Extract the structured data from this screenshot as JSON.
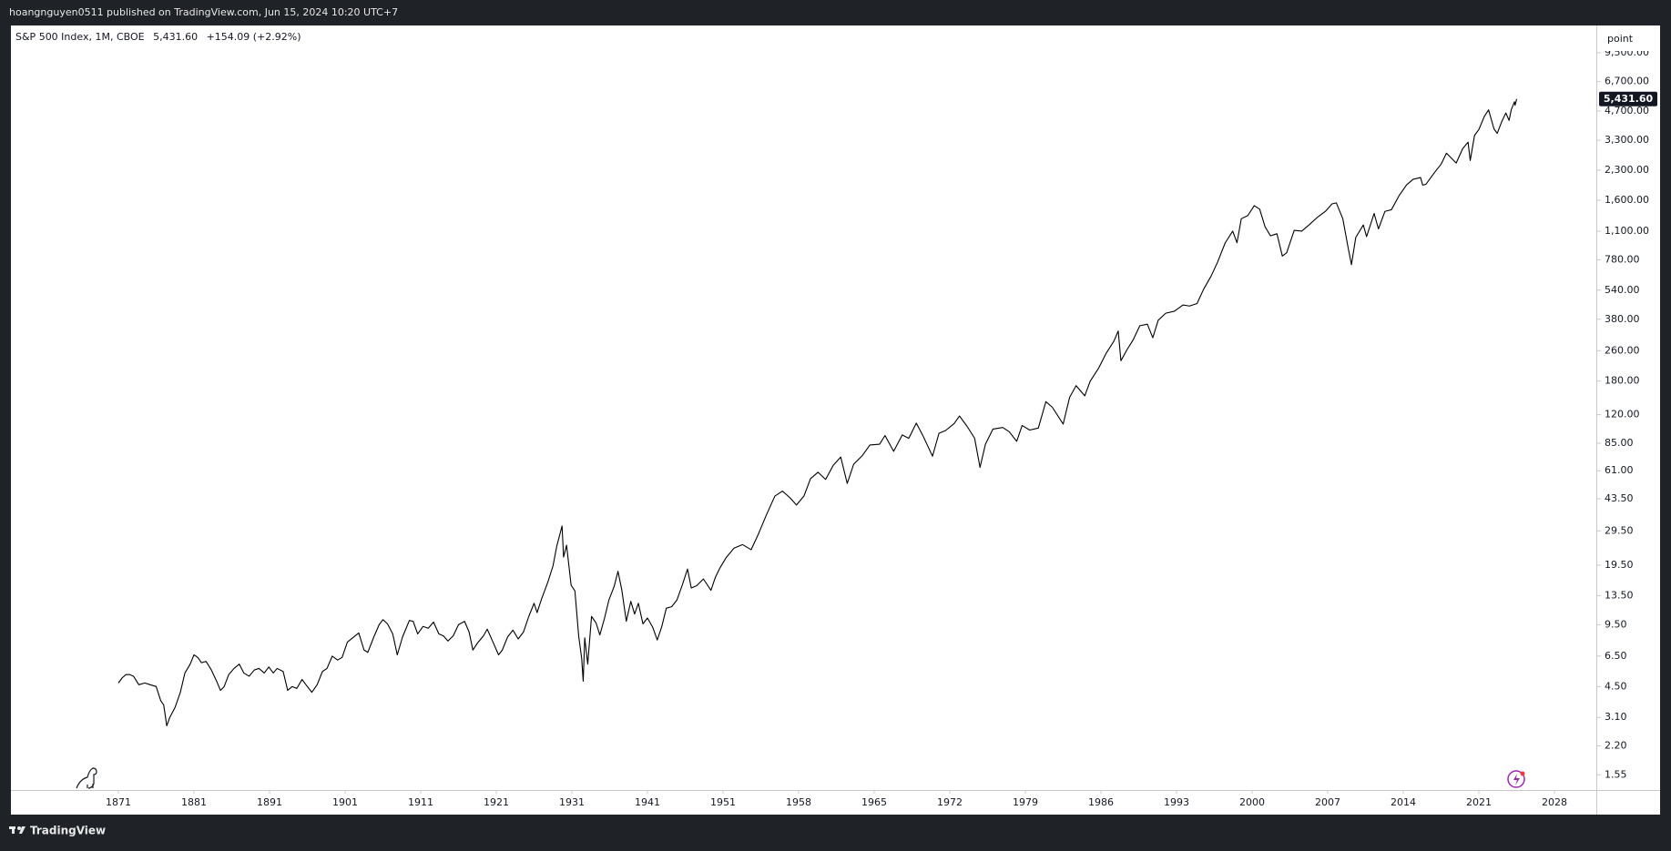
{
  "header": {
    "publisher": "hoangnguyen0511 published on TradingView.com, Jun 15, 2024 10:20 UTC+7"
  },
  "footer": {
    "brand": "TradingView"
  },
  "chart_data": {
    "type": "line",
    "symbol": "S&P 500 Index, 1M, CBOE",
    "price": "5,431.60",
    "change": "+154.09 (+2.92%)",
    "y_unit": "point",
    "log_scale": true,
    "color": "#000000",
    "last_price": {
      "value": 5431.6,
      "label": "5,431.60"
    },
    "ylim": [
      1.29,
      13200
    ],
    "yticks": [
      {
        "value": 1.55,
        "label": "1.55"
      },
      {
        "value": 2.2,
        "label": "2.20"
      },
      {
        "value": 3.1,
        "label": "3.10"
      },
      {
        "value": 4.5,
        "label": "4.50"
      },
      {
        "value": 6.5,
        "label": "6.50"
      },
      {
        "value": 9.5,
        "label": "9.50"
      },
      {
        "value": 13.5,
        "label": "13.50"
      },
      {
        "value": 19.5,
        "label": "19.50"
      },
      {
        "value": 29.5,
        "label": "29.50"
      },
      {
        "value": 43.5,
        "label": "43.50"
      },
      {
        "value": 61,
        "label": "61.00"
      },
      {
        "value": 85,
        "label": "85.00"
      },
      {
        "value": 120,
        "label": "120.00"
      },
      {
        "value": 180,
        "label": "180.00"
      },
      {
        "value": 260,
        "label": "260.00"
      },
      {
        "value": 380,
        "label": "380.00"
      },
      {
        "value": 540,
        "label": "540.00"
      },
      {
        "value": 780,
        "label": "780.00"
      },
      {
        "value": 1100,
        "label": "1,100.00"
      },
      {
        "value": 1600,
        "label": "1,600.00"
      },
      {
        "value": 2300,
        "label": "2,300.00"
      },
      {
        "value": 3300,
        "label": "3,300.00"
      },
      {
        "value": 4700,
        "label": "4,700.00"
      },
      {
        "value": 6700,
        "label": "6,700.00"
      },
      {
        "value": 9500,
        "label": "9,500.00"
      }
    ],
    "xticks": [
      1871,
      1881,
      1891,
      1901,
      1911,
      1921,
      1931,
      1941,
      1951,
      1958,
      1965,
      1972,
      1979,
      1986,
      1993,
      2000,
      2007,
      2014,
      2021,
      2028
    ],
    "x": [
      1871.0,
      1871.5,
      1872.0,
      1872.5,
      1873.0,
      1873.7,
      1874.5,
      1875.2,
      1876.0,
      1876.6,
      1877.0,
      1877.4,
      1877.8,
      1878.5,
      1879.2,
      1879.8,
      1880.5,
      1881.0,
      1881.5,
      1882.0,
      1882.6,
      1883.3,
      1884.0,
      1884.5,
      1885.0,
      1885.6,
      1886.3,
      1887.0,
      1887.6,
      1888.3,
      1889.0,
      1889.6,
      1890.3,
      1890.9,
      1891.5,
      1892.0,
      1892.8,
      1893.4,
      1894.0,
      1894.6,
      1895.3,
      1896.0,
      1896.6,
      1897.3,
      1898.0,
      1898.6,
      1899.3,
      1900.0,
      1900.6,
      1901.3,
      1902.0,
      1902.8,
      1903.5,
      1904.0,
      1904.8,
      1905.5,
      1906.0,
      1906.6,
      1907.3,
      1907.9,
      1908.6,
      1909.5,
      1910.0,
      1910.6,
      1911.3,
      1912.0,
      1912.7,
      1913.4,
      1914.0,
      1914.6,
      1915.3,
      1916.0,
      1916.8,
      1917.4,
      1917.9,
      1918.5,
      1919.3,
      1919.8,
      1920.5,
      1921.3,
      1921.8,
      1922.5,
      1923.2,
      1923.9,
      1924.6,
      1925.3,
      1926.0,
      1926.4,
      1927.0,
      1927.8,
      1928.5,
      1929.0,
      1929.7,
      1929.9,
      1930.3,
      1930.9,
      1931.4,
      1931.9,
      1932.3,
      1932.5,
      1932.7,
      1933.1,
      1933.6,
      1934.2,
      1934.7,
      1935.3,
      1935.9,
      1936.6,
      1937.1,
      1937.6,
      1938.2,
      1938.8,
      1939.3,
      1939.8,
      1940.4,
      1941.0,
      1941.7,
      1942.3,
      1942.9,
      1943.5,
      1944.2,
      1944.9,
      1945.6,
      1946.3,
      1946.8,
      1947.5,
      1948.4,
      1949.4,
      1950.0,
      1950.6,
      1951.3,
      1952.0,
      1952.8,
      1953.6,
      1954.3,
      1955.0,
      1955.8,
      1956.5,
      1957.2,
      1957.8,
      1958.5,
      1959.1,
      1959.8,
      1960.5,
      1961.2,
      1961.9,
      1962.5,
      1963.1,
      1963.9,
      1964.6,
      1965.5,
      1966.0,
      1966.8,
      1967.6,
      1968.2,
      1968.9,
      1969.5,
      1970.4,
      1971.0,
      1971.6,
      1972.4,
      1972.9,
      1973.6,
      1974.3,
      1974.8,
      1975.3,
      1976.0,
      1976.9,
      1977.5,
      1978.2,
      1978.7,
      1979.4,
      1980.2,
      1980.9,
      1981.5,
      1982.5,
      1983.1,
      1983.7,
      1984.5,
      1985.0,
      1985.8,
      1986.5,
      1987.2,
      1987.6,
      1987.85,
      1988.4,
      1989.0,
      1989.6,
      1990.3,
      1990.8,
      1991.3,
      1992.0,
      1992.8,
      1993.6,
      1994.2,
      1994.9,
      1995.5,
      1996.2,
      1996.8,
      1997.5,
      1998.2,
      1998.6,
      1999.0,
      1999.6,
      2000.2,
      2000.7,
      2001.2,
      2001.7,
      2002.3,
      2002.8,
      2003.2,
      2003.9,
      2004.6,
      2005.3,
      2006.0,
      2006.8,
      2007.4,
      2007.8,
      2008.4,
      2008.9,
      2009.2,
      2009.6,
      2010.3,
      2010.6,
      2011.3,
      2011.7,
      2012.3,
      2012.9,
      2013.6,
      2014.3,
      2014.9,
      2015.6,
      2015.8,
      2016.1,
      2016.9,
      2017.5,
      2018.0,
      2018.9,
      2019.5,
      2020.0,
      2020.2,
      2020.6,
      2021.0,
      2021.5,
      2021.9,
      2022.4,
      2022.7,
      2023.1,
      2023.5,
      2023.8,
      2024.0,
      2024.3,
      2024.35,
      2024.45,
      2024.5
    ],
    "values": [
      4.7,
      5.0,
      5.2,
      5.2,
      5.1,
      4.6,
      4.7,
      4.6,
      4.5,
      3.8,
      3.6,
      2.8,
      3.1,
      3.5,
      4.2,
      5.3,
      5.9,
      6.6,
      6.4,
      6.0,
      6.1,
      5.5,
      4.8,
      4.3,
      4.5,
      5.2,
      5.6,
      5.9,
      5.3,
      5.1,
      5.5,
      5.6,
      5.3,
      5.7,
      5.3,
      5.6,
      5.4,
      4.3,
      4.5,
      4.4,
      4.9,
      4.5,
      4.2,
      4.6,
      5.4,
      5.6,
      6.5,
      6.2,
      6.4,
      7.7,
      8.1,
      8.6,
      7.0,
      6.8,
      8.2,
      9.5,
      10.1,
      9.6,
      8.5,
      6.6,
      8.2,
      10.0,
      9.9,
      8.5,
      9.3,
      9.1,
      9.8,
      8.5,
      8.3,
      7.8,
      8.3,
      9.5,
      9.9,
      8.7,
      7.0,
      7.6,
      8.3,
      9.0,
      7.8,
      6.6,
      7.0,
      8.2,
      8.9,
      8.0,
      8.7,
      10.5,
      12.3,
      11.0,
      13.0,
      15.8,
      19.3,
      24.5,
      31.3,
      21.5,
      24.8,
      15.3,
      14.3,
      8.3,
      6.3,
      4.8,
      8.1,
      5.9,
      10.5,
      9.7,
      8.4,
      10.2,
      12.8,
      15.1,
      18.1,
      14.5,
      9.9,
      12.6,
      10.8,
      12.3,
      9.6,
      10.3,
      9.2,
      7.9,
      9.3,
      11.6,
      11.8,
      12.8,
      15.3,
      18.6,
      14.8,
      15.2,
      16.5,
      14.4,
      16.9,
      18.9,
      21.4,
      23.9,
      25.0,
      23.5,
      28.6,
      35.6,
      44.9,
      47.7,
      44.0,
      40.3,
      45.0,
      55.4,
      59.9,
      54.9,
      65.0,
      72.0,
      52.3,
      66.0,
      73.2,
      83.2,
      84.0,
      93.3,
      77.1,
      94.0,
      90.2,
      108.4,
      93.5,
      72.7,
      95.9,
      99.0,
      107.7,
      118.1,
      104.3,
      90.3,
      63.5,
      83.9,
      100.9,
      102.8,
      97.7,
      87.0,
      105.4,
      99.7,
      102.1,
      140.5,
      131.2,
      107.1,
      148.1,
      170.4,
      150.7,
      179.6,
      211.3,
      252.9,
      291.7,
      329.8,
      230.3,
      262.2,
      297.5,
      351.4,
      358.0,
      304.0,
      375.2,
      408.8,
      418.7,
      451.7,
      445.8,
      459.3,
      545.0,
      639.4,
      757.0,
      954.3,
      1101.8,
      957.3,
      1279.6,
      1328.7,
      1498.6,
      1436.5,
      1160.3,
      1040.9,
      1067.1,
      815.3,
      848.2,
      1111.9,
      1101.7,
      1191.5,
      1294.8,
      1400.6,
      1530.6,
      1549.4,
      1280.0,
      896.2,
      735.1,
      1020.6,
      1186.7,
      1030.7,
      1363.6,
      1131.4,
      1397.9,
      1426.2,
      1685.7,
      1923.6,
      2058.9,
      2103.8,
      1920.0,
      1940.2,
      2238.8,
      2470.3,
      2823.8,
      2506.9,
      2980.4,
      3225.5,
      2584.6,
      3500.3,
      3756.1,
      4395.3,
      4766.2,
      3785.4,
      3585.6,
      4109.3,
      4588.9,
      4193.8,
      4769.8,
      5254.4,
      5035.7,
      5277.5,
      5431.6
    ]
  }
}
